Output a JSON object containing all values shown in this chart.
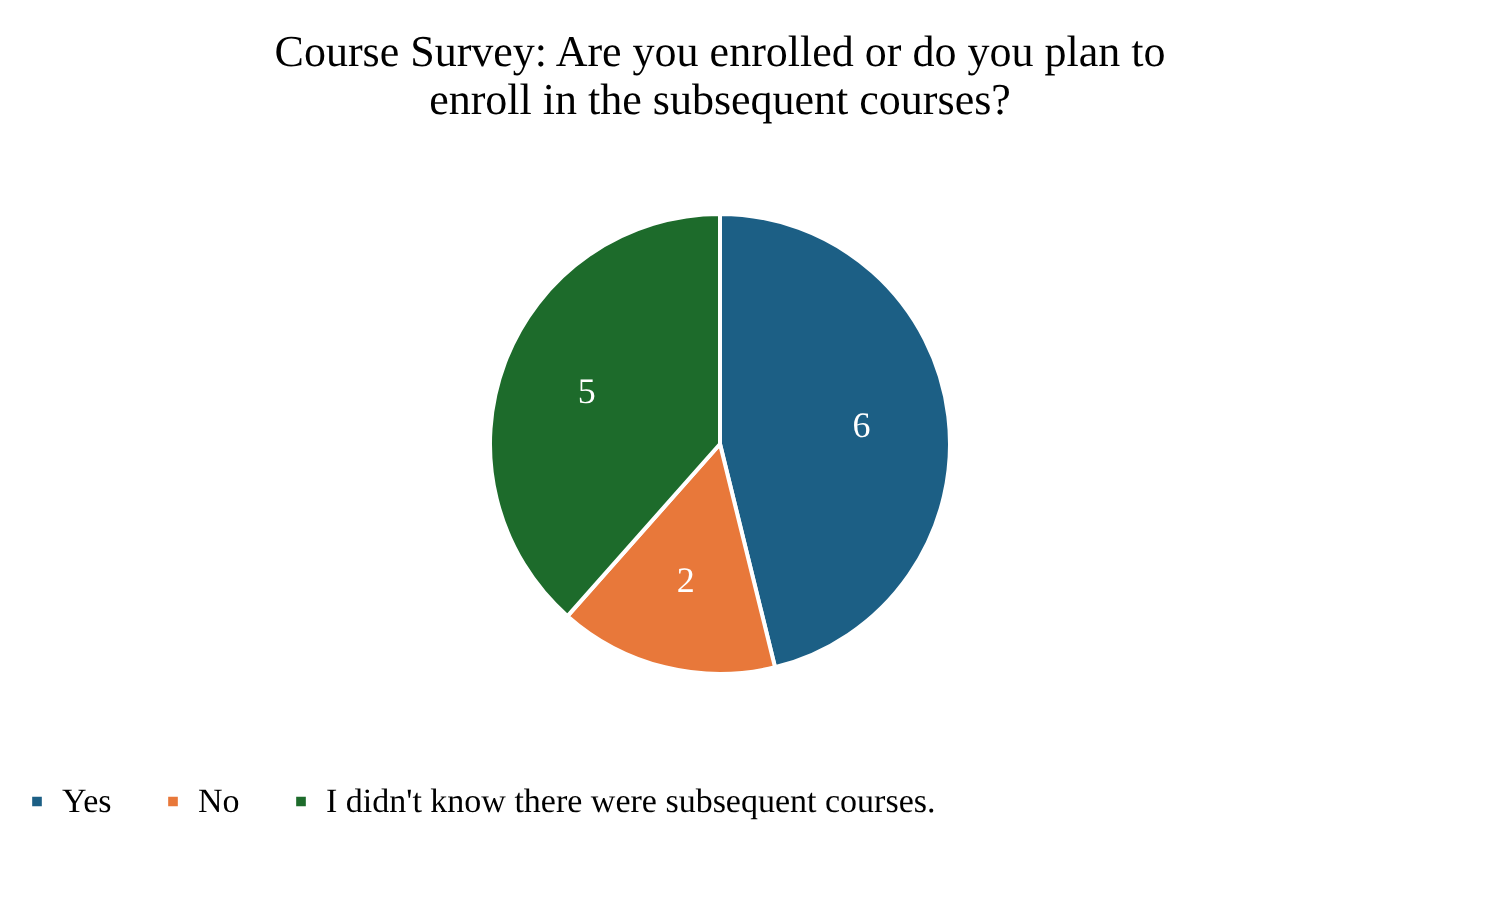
{
  "chart_data": {
    "type": "pie",
    "title": "Course Survey: Are you enrolled or do you plan to enroll in the subsequent courses?",
    "categories": [
      "Yes",
      "No",
      "I didn't know there were subsequent courses."
    ],
    "values": [
      6,
      2,
      5
    ],
    "colors": [
      "#1c5f85",
      "#e8783a",
      "#1d6b2b"
    ],
    "data_labels": true,
    "legend": "bottom"
  }
}
